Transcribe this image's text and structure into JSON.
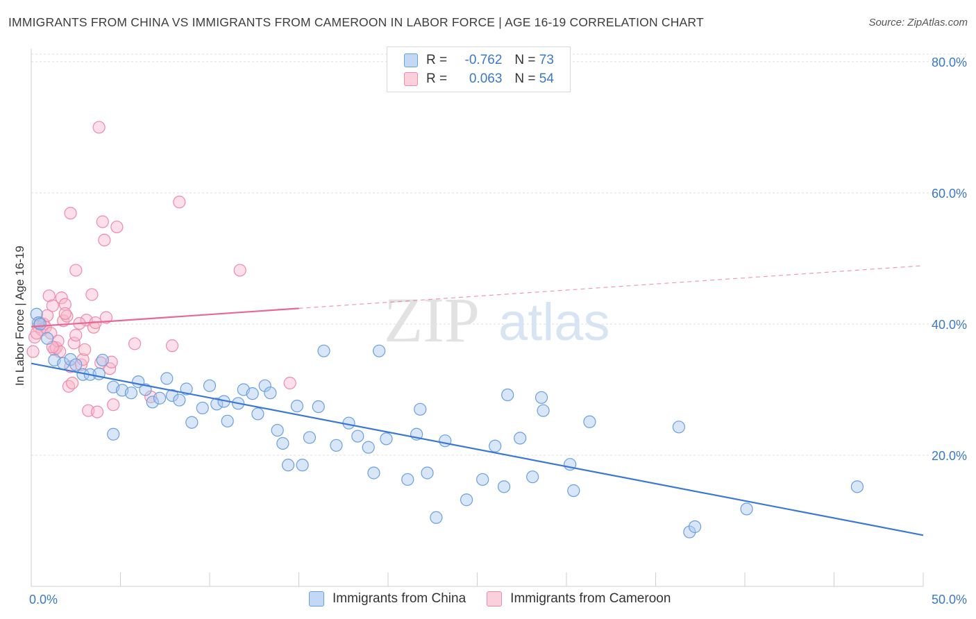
{
  "header": {
    "title": "IMMIGRANTS FROM CHINA VS IMMIGRANTS FROM CAMEROON IN LABOR FORCE | AGE 16-19 CORRELATION CHART",
    "source": "Source: ZipAtlas.com"
  },
  "watermark": {
    "zip": "ZIP",
    "atlas": "atlas"
  },
  "legend": {
    "rows": [
      {
        "r_label": "R =",
        "r_value": "-0.762",
        "n_label": "N =",
        "n_value": "73"
      },
      {
        "r_label": "R =",
        "r_value": "0.063",
        "n_label": "N =",
        "n_value": "54"
      }
    ]
  },
  "colors": {
    "china_fill": "#a9c8f0",
    "china_stroke": "#6a9fe0",
    "china_line": "#3a78d8",
    "cameroon_fill": "#f8b8cc",
    "cameroon_stroke": "#ee8aa8",
    "cameroon_line": "#e86892",
    "axis_label": "#3a78c8",
    "grid": "#dddddd"
  },
  "chart_data": {
    "type": "scatter",
    "title": "IMMIGRANTS FROM CHINA VS IMMIGRANTS FROM CAMEROON IN LABOR FORCE | AGE 16-19 CORRELATION CHART",
    "xlabel": "",
    "ylabel": "In Labor Force | Age 16-19",
    "xlim": [
      0,
      50
    ],
    "ylim": [
      0,
      82
    ],
    "x_tick_labels": [
      "0.0%",
      "50.0%"
    ],
    "y_ticks": [
      20,
      40,
      60,
      80
    ],
    "y_tick_labels": [
      "20.0%",
      "40.0%",
      "60.0%",
      "80.0%"
    ],
    "grid": true,
    "legend_position": "bottom",
    "series": [
      {
        "name": "Immigrants from China",
        "r": -0.762,
        "n": 73,
        "trend": {
          "x": [
            0,
            50
          ],
          "y": [
            34.0,
            7.8
          ],
          "dashed_from": null
        },
        "points": [
          [
            0.3,
            41.5
          ],
          [
            0.4,
            40.2
          ],
          [
            0.5,
            40.0
          ],
          [
            0.9,
            37.8
          ],
          [
            1.3,
            34.5
          ],
          [
            1.8,
            34.0
          ],
          [
            2.2,
            34.6
          ],
          [
            2.5,
            33.8
          ],
          [
            2.9,
            32.3
          ],
          [
            3.3,
            32.3
          ],
          [
            3.8,
            32.4
          ],
          [
            4.0,
            34.5
          ],
          [
            4.6,
            30.4
          ],
          [
            5.1,
            29.9
          ],
          [
            4.6,
            23.2
          ],
          [
            5.6,
            29.5
          ],
          [
            6.0,
            31.2
          ],
          [
            6.4,
            30.0
          ],
          [
            6.8,
            28.1
          ],
          [
            7.2,
            28.7
          ],
          [
            7.6,
            31.7
          ],
          [
            7.9,
            29.1
          ],
          [
            8.3,
            28.4
          ],
          [
            8.7,
            30.1
          ],
          [
            9.0,
            25.0
          ],
          [
            9.6,
            27.2
          ],
          [
            10.0,
            30.6
          ],
          [
            10.4,
            27.8
          ],
          [
            10.8,
            28.2
          ],
          [
            11.0,
            25.2
          ],
          [
            11.6,
            27.9
          ],
          [
            11.9,
            30.0
          ],
          [
            12.4,
            29.4
          ],
          [
            12.7,
            26.3
          ],
          [
            13.1,
            30.6
          ],
          [
            13.4,
            29.5
          ],
          [
            13.8,
            23.8
          ],
          [
            14.1,
            21.8
          ],
          [
            14.4,
            18.5
          ],
          [
            14.9,
            27.5
          ],
          [
            15.2,
            18.5
          ],
          [
            15.6,
            22.7
          ],
          [
            16.1,
            27.4
          ],
          [
            16.4,
            35.9
          ],
          [
            17.1,
            21.5
          ],
          [
            17.8,
            24.9
          ],
          [
            18.3,
            22.9
          ],
          [
            18.9,
            21.2
          ],
          [
            19.2,
            17.3
          ],
          [
            19.5,
            35.9
          ],
          [
            19.9,
            22.5
          ],
          [
            21.1,
            16.3
          ],
          [
            21.6,
            23.2
          ],
          [
            21.8,
            27.0
          ],
          [
            22.2,
            17.3
          ],
          [
            22.7,
            10.5
          ],
          [
            23.2,
            22.2
          ],
          [
            24.4,
            13.2
          ],
          [
            25.3,
            16.3
          ],
          [
            26.0,
            21.4
          ],
          [
            26.5,
            15.2
          ],
          [
            26.7,
            29.2
          ],
          [
            27.4,
            22.6
          ],
          [
            28.1,
            16.7
          ],
          [
            28.6,
            28.8
          ],
          [
            28.7,
            26.8
          ],
          [
            30.2,
            18.6
          ],
          [
            30.4,
            14.6
          ],
          [
            31.3,
            25.1
          ],
          [
            36.3,
            24.3
          ],
          [
            36.9,
            8.3
          ],
          [
            37.2,
            9.1
          ],
          [
            40.1,
            11.8
          ],
          [
            46.3,
            15.2
          ]
        ]
      },
      {
        "name": "Immigrants from Cameroon",
        "r": 0.063,
        "n": 54,
        "trend": {
          "x": [
            0,
            50
          ],
          "y": [
            39.6,
            48.9
          ],
          "dashed_from": 15
        },
        "points": [
          [
            0.1,
            35.8
          ],
          [
            0.2,
            38.0
          ],
          [
            0.4,
            39.6
          ],
          [
            0.5,
            40.2
          ],
          [
            0.6,
            39.1
          ],
          [
            0.7,
            40.0
          ],
          [
            0.8,
            39.5
          ],
          [
            0.9,
            41.3
          ],
          [
            1.0,
            44.3
          ],
          [
            1.1,
            38.6
          ],
          [
            1.2,
            42.8
          ],
          [
            1.3,
            36.1
          ],
          [
            1.4,
            36.4
          ],
          [
            1.5,
            37.4
          ],
          [
            1.6,
            35.8
          ],
          [
            1.7,
            44.0
          ],
          [
            1.8,
            40.5
          ],
          [
            1.9,
            43.0
          ],
          [
            2.0,
            41.2
          ],
          [
            2.1,
            30.5
          ],
          [
            2.2,
            33.5
          ],
          [
            2.3,
            31.0
          ],
          [
            2.4,
            37.1
          ],
          [
            2.5,
            38.3
          ],
          [
            2.2,
            56.9
          ],
          [
            2.5,
            48.2
          ],
          [
            2.8,
            33.8
          ],
          [
            2.9,
            34.6
          ],
          [
            3.0,
            36.1
          ],
          [
            3.1,
            40.6
          ],
          [
            3.2,
            26.8
          ],
          [
            3.4,
            44.5
          ],
          [
            3.5,
            39.5
          ],
          [
            3.6,
            40.2
          ],
          [
            3.7,
            26.6
          ],
          [
            3.8,
            70.0
          ],
          [
            3.9,
            34.1
          ],
          [
            4.0,
            55.6
          ],
          [
            4.1,
            52.8
          ],
          [
            4.2,
            41.0
          ],
          [
            4.4,
            33.2
          ],
          [
            4.5,
            34.2
          ],
          [
            4.6,
            27.7
          ],
          [
            4.8,
            54.8
          ],
          [
            5.8,
            37.0
          ],
          [
            6.7,
            28.9
          ],
          [
            7.9,
            36.7
          ],
          [
            8.3,
            58.6
          ],
          [
            11.7,
            48.2
          ],
          [
            14.5,
            31.0
          ],
          [
            0.3,
            38.6
          ],
          [
            1.2,
            36.5
          ],
          [
            2.7,
            40.1
          ],
          [
            1.9,
            41.6
          ]
        ]
      }
    ]
  },
  "bottom_legend": {
    "china": "Immigrants from China",
    "cameroon": "Immigrants from Cameroon"
  }
}
